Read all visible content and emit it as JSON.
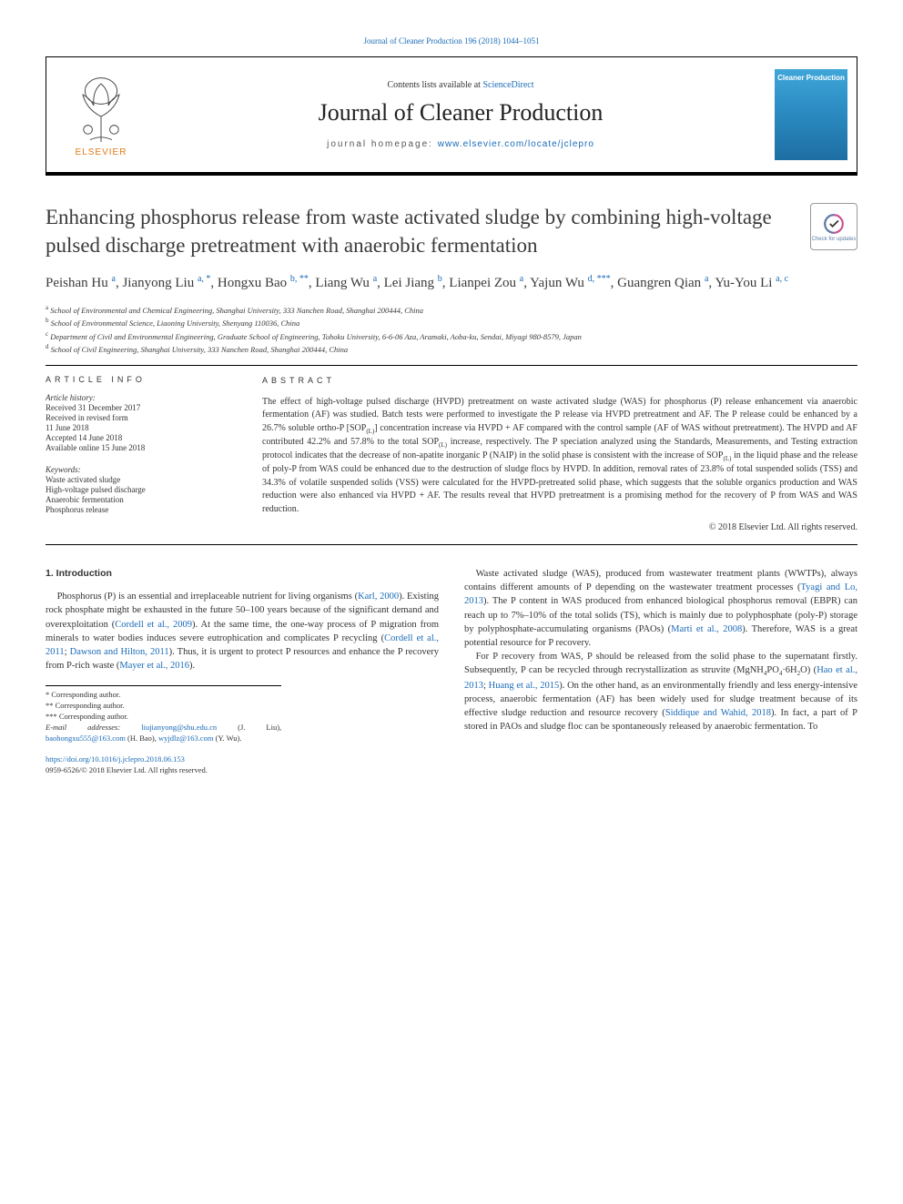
{
  "journal": {
    "citation_line": "Journal of Cleaner Production 196 (2018) 1044–1051",
    "contents_prefix": "Contents lists available at ",
    "contents_link": "ScienceDirect",
    "name": "Journal of Cleaner Production",
    "homepage_prefix": "journal homepage: ",
    "homepage_url": "www.elsevier.com/locate/jclepro",
    "publisher_name": "ELSEVIER",
    "cover_title": "Cleaner Production",
    "updates_label": "Check for updates"
  },
  "paper": {
    "title": "Enhancing phosphorus release from waste activated sludge by combining high-voltage pulsed discharge pretreatment with anaerobic fermentation",
    "authors_html": "Peishan Hu <sup>a</sup>, Jianyong Liu <sup>a, *</sup>, Hongxu Bao <sup>b, **</sup>, Liang Wu <sup>a</sup>, Lei Jiang <sup>b</sup>, Lianpei Zou <sup>a</sup>, Yajun Wu <sup>d, ***</sup>, Guangren Qian <sup>a</sup>, Yu-You Li <sup>a, c</sup>",
    "affiliations": [
      {
        "sup": "a",
        "text": "School of Environmental and Chemical Engineering, Shanghai University, 333 Nanchen Road, Shanghai 200444, China"
      },
      {
        "sup": "b",
        "text": "School of Environmental Science, Liaoning University, Shenyang 110036, China"
      },
      {
        "sup": "c",
        "text": "Department of Civil and Environmental Engineering, Graduate School of Engineering, Tohoku University, 6-6-06 Aza, Aramaki, Aoba-ku, Sendai, Miyagi 980-8579, Japan"
      },
      {
        "sup": "d",
        "text": "School of Civil Engineering, Shanghai University, 333 Nanchen Road, Shanghai 200444, China"
      }
    ]
  },
  "article_info": {
    "heading": "ARTICLE INFO",
    "history_head": "Article history:",
    "history": [
      "Received 31 December 2017",
      "Received in revised form",
      "11 June 2018",
      "Accepted 14 June 2018",
      "Available online 15 June 2018"
    ],
    "keywords_head": "Keywords:",
    "keywords": [
      "Waste activated sludge",
      "High-voltage pulsed discharge",
      "Anaerobic fermentation",
      "Phosphorus release"
    ]
  },
  "abstract": {
    "heading": "ABSTRACT",
    "text_html": "The effect of high-voltage pulsed discharge (HVPD) pretreatment on waste activated sludge (WAS) for phosphorus (P) release enhancement via anaerobic fermentation (AF) was studied. Batch tests were performed to investigate the P release via HVPD pretreatment and AF. The P release could be enhanced by a 26.7% soluble ortho-P [SOP<sub>(L)</sub>] concentration increase via HVPD + AF compared with the control sample (AF of WAS without pretreatment). The HVPD and AF contributed 42.2% and 57.8% to the total SOP<sub>(L)</sub> increase, respectively. The P speciation analyzed using the Standards, Measurements, and Testing extraction protocol indicates that the decrease of non-apatite inorganic P (NAIP) in the solid phase is consistent with the increase of SOP<sub>(L)</sub> in the liquid phase and the release of poly-P from WAS could be enhanced due to the destruction of sludge flocs by HVPD. In addition, removal rates of 23.8% of total suspended solids (TSS) and 34.3% of volatile suspended solids (VSS) were calculated for the HVPD-pretreated solid phase, which suggests that the soluble organics production and WAS reduction were also enhanced via HVPD + AF. The results reveal that HVPD pretreatment is a promising method for the recovery of P from WAS and WAS reduction.",
    "copyright": "© 2018 Elsevier Ltd. All rights reserved."
  },
  "body": {
    "section_head": "1. Introduction",
    "col1_html": "<p>Phosphorus (P) is an essential and irreplaceable nutrient for living organisms (<a href='#'>Karl, 2000</a>). Existing rock phosphate might be exhausted in the future 50–100 years because of the significant demand and overexploitation (<a href='#'>Cordell et al., 2009</a>). At the same time, the one-way process of P migration from minerals to water bodies induces severe eutrophication and complicates P recycling (<a href='#'>Cordell et al., 2011</a>; <a href='#'>Dawson and Hilton, 2011</a>). Thus, it is urgent to protect P resources and enhance the P recovery from P-rich waste (<a href='#'>Mayer et al., 2016</a>).</p>",
    "col2_html": "<p>Waste activated sludge (WAS), produced from wastewater treatment plants (WWTPs), always contains different amounts of P depending on the wastewater treatment processes (<a href='#'>Tyagi and Lo, 2013</a>). The P content in WAS produced from enhanced biological phosphorus removal (EBPR) can reach up to 7%–10% of the total solids (TS), which is mainly due to polyphosphate (poly-P) storage by polyphosphate-accumulating organisms (PAOs) (<a href='#'>Marti et al., 2008</a>). Therefore, WAS is a great potential resource for P recovery.</p><p>For P recovery from WAS, P should be released from the solid phase to the supernatant firstly. Subsequently, P can be recycled through recrystallization as struvite (MgNH<sub>4</sub>PO<sub>4</sub>·6H<sub>2</sub>O) (<a href='#'>Hao et al., 2013</a>; <a href='#'>Huang et al., 2015</a>). On the other hand, as an environmentally friendly and less energy-intensive process, anaerobic fermentation (AF) has been widely used for sludge treatment because of its effective sludge reduction and resource recovery (<a href='#'>Siddique and Wahid, 2018</a>). In fact, a part of P stored in PAOs and sludge floc can be spontaneously released by anaerobic fermentation. To</p>"
  },
  "footnotes": {
    "lines": [
      "* Corresponding author.",
      "** Corresponding author.",
      "*** Corresponding author."
    ],
    "email_label": "E-mail addresses:",
    "emails_html": "<a href='#'>liujianyong@shu.edu.cn</a> (J. Liu), <a href='#'>baohongxu555@163.com</a> (H. Bao), <a href='#'>wyjdlz@163.com</a> (Y. Wu)."
  },
  "footer": {
    "doi": "https://doi.org/10.1016/j.jclepro.2018.06.153",
    "issn_line": "0959-6526/© 2018 Elsevier Ltd. All rights reserved."
  },
  "colors": {
    "link": "#1a6bb8",
    "elsevier_orange": "#e67817",
    "cover_gradient_top": "#3fa6d9",
    "cover_gradient_bottom": "#1d6ea3"
  }
}
